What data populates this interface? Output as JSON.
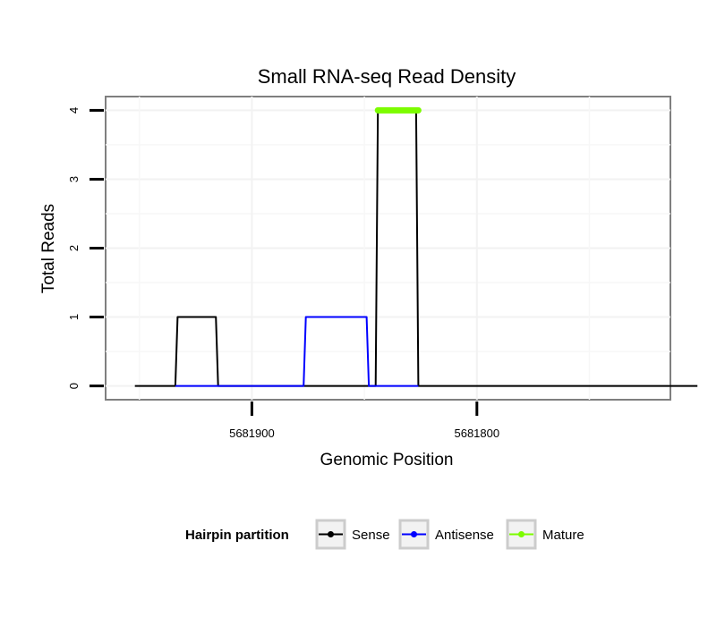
{
  "chart_data": {
    "type": "line",
    "title": "Small RNA-seq Read Density",
    "xlabel": "Genomic Position",
    "ylabel": "Total Reads",
    "x_reversed": true,
    "xlim": [
      5681965,
      5681714
    ],
    "ylim": [
      -0.2,
      4.2
    ],
    "x_ticks": [
      {
        "value": 5681900,
        "label": "5681900"
      },
      {
        "value": 5681800,
        "label": "5681800"
      }
    ],
    "y_ticks": [
      {
        "value": 0,
        "label": "0"
      },
      {
        "value": 1,
        "label": "1"
      },
      {
        "value": 2,
        "label": "2"
      },
      {
        "value": 3,
        "label": "3"
      },
      {
        "value": 4,
        "label": "4"
      }
    ],
    "grid": true,
    "series": [
      {
        "name": "Sense",
        "color": "#000000",
        "x": [
          5681952,
          5681934,
          5681933,
          5681916,
          5681915,
          5681864,
          5681863,
          5681845,
          5681844,
          5681827,
          5681826,
          5681702
        ],
        "y": [
          0,
          0,
          1,
          1,
          0,
          0,
          0,
          0,
          4,
          4,
          0,
          0
        ]
      },
      {
        "name": "Antisense",
        "color": "#0000ff",
        "x": [
          5681934,
          5681915,
          5681877,
          5681876,
          5681849,
          5681848,
          5681826
        ],
        "y": [
          0,
          0,
          0,
          1,
          1,
          0,
          0
        ]
      },
      {
        "name": "Mature",
        "color": "#7cfc00",
        "x": [
          5681844,
          5681826
        ],
        "y": [
          4,
          4
        ]
      }
    ],
    "legend": {
      "title": "Hairpin partition",
      "position": "bottom",
      "entries": [
        "Sense",
        "Antisense",
        "Mature"
      ]
    }
  }
}
